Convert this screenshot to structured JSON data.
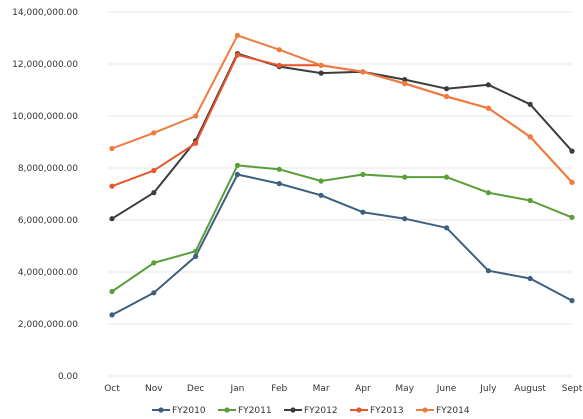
{
  "chart_data": {
    "type": "line",
    "title": "",
    "xlabel": "",
    "ylabel": "",
    "categories": [
      "Oct",
      "Nov",
      "Dec",
      "Jan",
      "Feb",
      "Mar",
      "Apr",
      "May",
      "June",
      "July",
      "August",
      "Sept"
    ],
    "y_ticks": [
      0,
      2000000,
      4000000,
      6000000,
      8000000,
      10000000,
      12000000,
      14000000
    ],
    "y_tick_labels": [
      "0.00",
      "2,000,000.00",
      "4,000,000.00",
      "6,000,000.00",
      "8,000,000.00",
      "10,000,000.00",
      "12,000,000.00",
      "14,000,000.00"
    ],
    "ylim": [
      0,
      14000000
    ],
    "grid": true,
    "legend_position": "bottom",
    "series": [
      {
        "name": "FY2010",
        "color": "#3d5f80",
        "values": [
          2350000,
          3200000,
          4600000,
          7750000,
          7400000,
          6950000,
          6300000,
          6050000,
          5700000,
          4050000,
          3750000,
          2900000
        ]
      },
      {
        "name": "FY2011",
        "color": "#5a9e3a",
        "values": [
          3250000,
          4350000,
          4800000,
          8100000,
          7950000,
          7500000,
          7750000,
          7650000,
          7650000,
          7050000,
          6750000,
          6100000
        ]
      },
      {
        "name": "FY2012",
        "color": "#3c3c3c",
        "values": [
          6050000,
          7050000,
          9050000,
          12400000,
          11900000,
          11650000,
          11700000,
          11400000,
          11050000,
          11200000,
          10450000,
          8650000
        ]
      },
      {
        "name": "FY2013",
        "color": "#e8562a",
        "values": [
          7300000,
          7900000,
          8950000,
          12350000,
          11950000,
          11950000,
          11700000,
          11250000,
          10750000,
          10300000,
          9200000,
          7450000
        ]
      },
      {
        "name": "FY2014",
        "color": "#f07b3f",
        "values": [
          8750000,
          9350000,
          10000000,
          13100000,
          12550000,
          11950000,
          11700000,
          11250000,
          10750000,
          10300000,
          9200000,
          7450000
        ]
      }
    ]
  }
}
